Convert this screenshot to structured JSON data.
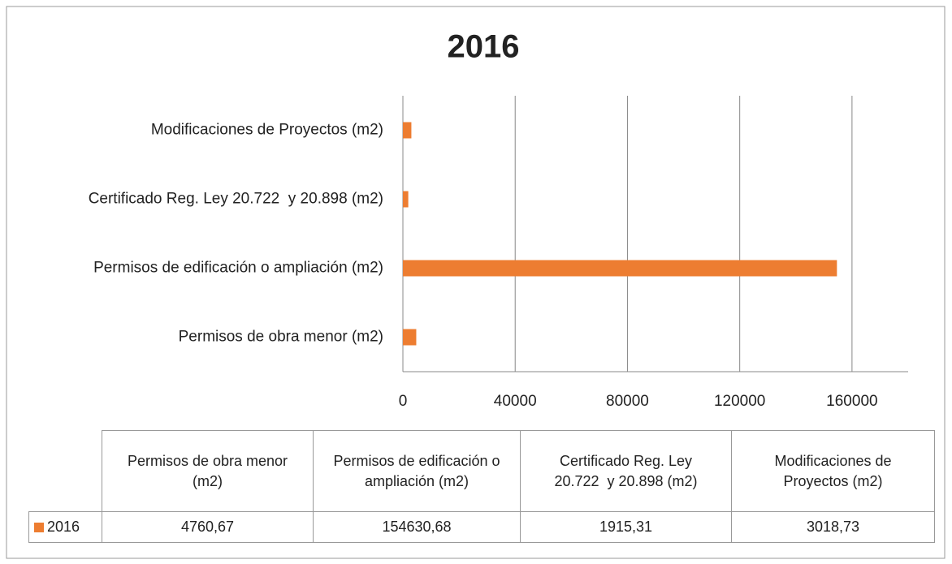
{
  "chart_data": {
    "type": "barh",
    "title": "2016",
    "categories": [
      "Permisos de obra menor (m2)",
      "Permisos de edificación o ampliación (m2)",
      "Certificado Reg. Ley 20.722  y 20.898 (m2)",
      "Modificaciones de Proyectos (m2)"
    ],
    "series": [
      {
        "name": "2016",
        "color": "#ed7d31",
        "values": [
          4760.67,
          154630.68,
          1915.31,
          3018.73
        ],
        "value_labels": [
          "4760,67",
          "154630,68",
          "1915,31",
          "3018,73"
        ]
      }
    ],
    "xlim": [
      0,
      180000
    ],
    "xticks": [
      0,
      40000,
      80000,
      120000,
      160000
    ],
    "grid": true,
    "data_table": true
  }
}
